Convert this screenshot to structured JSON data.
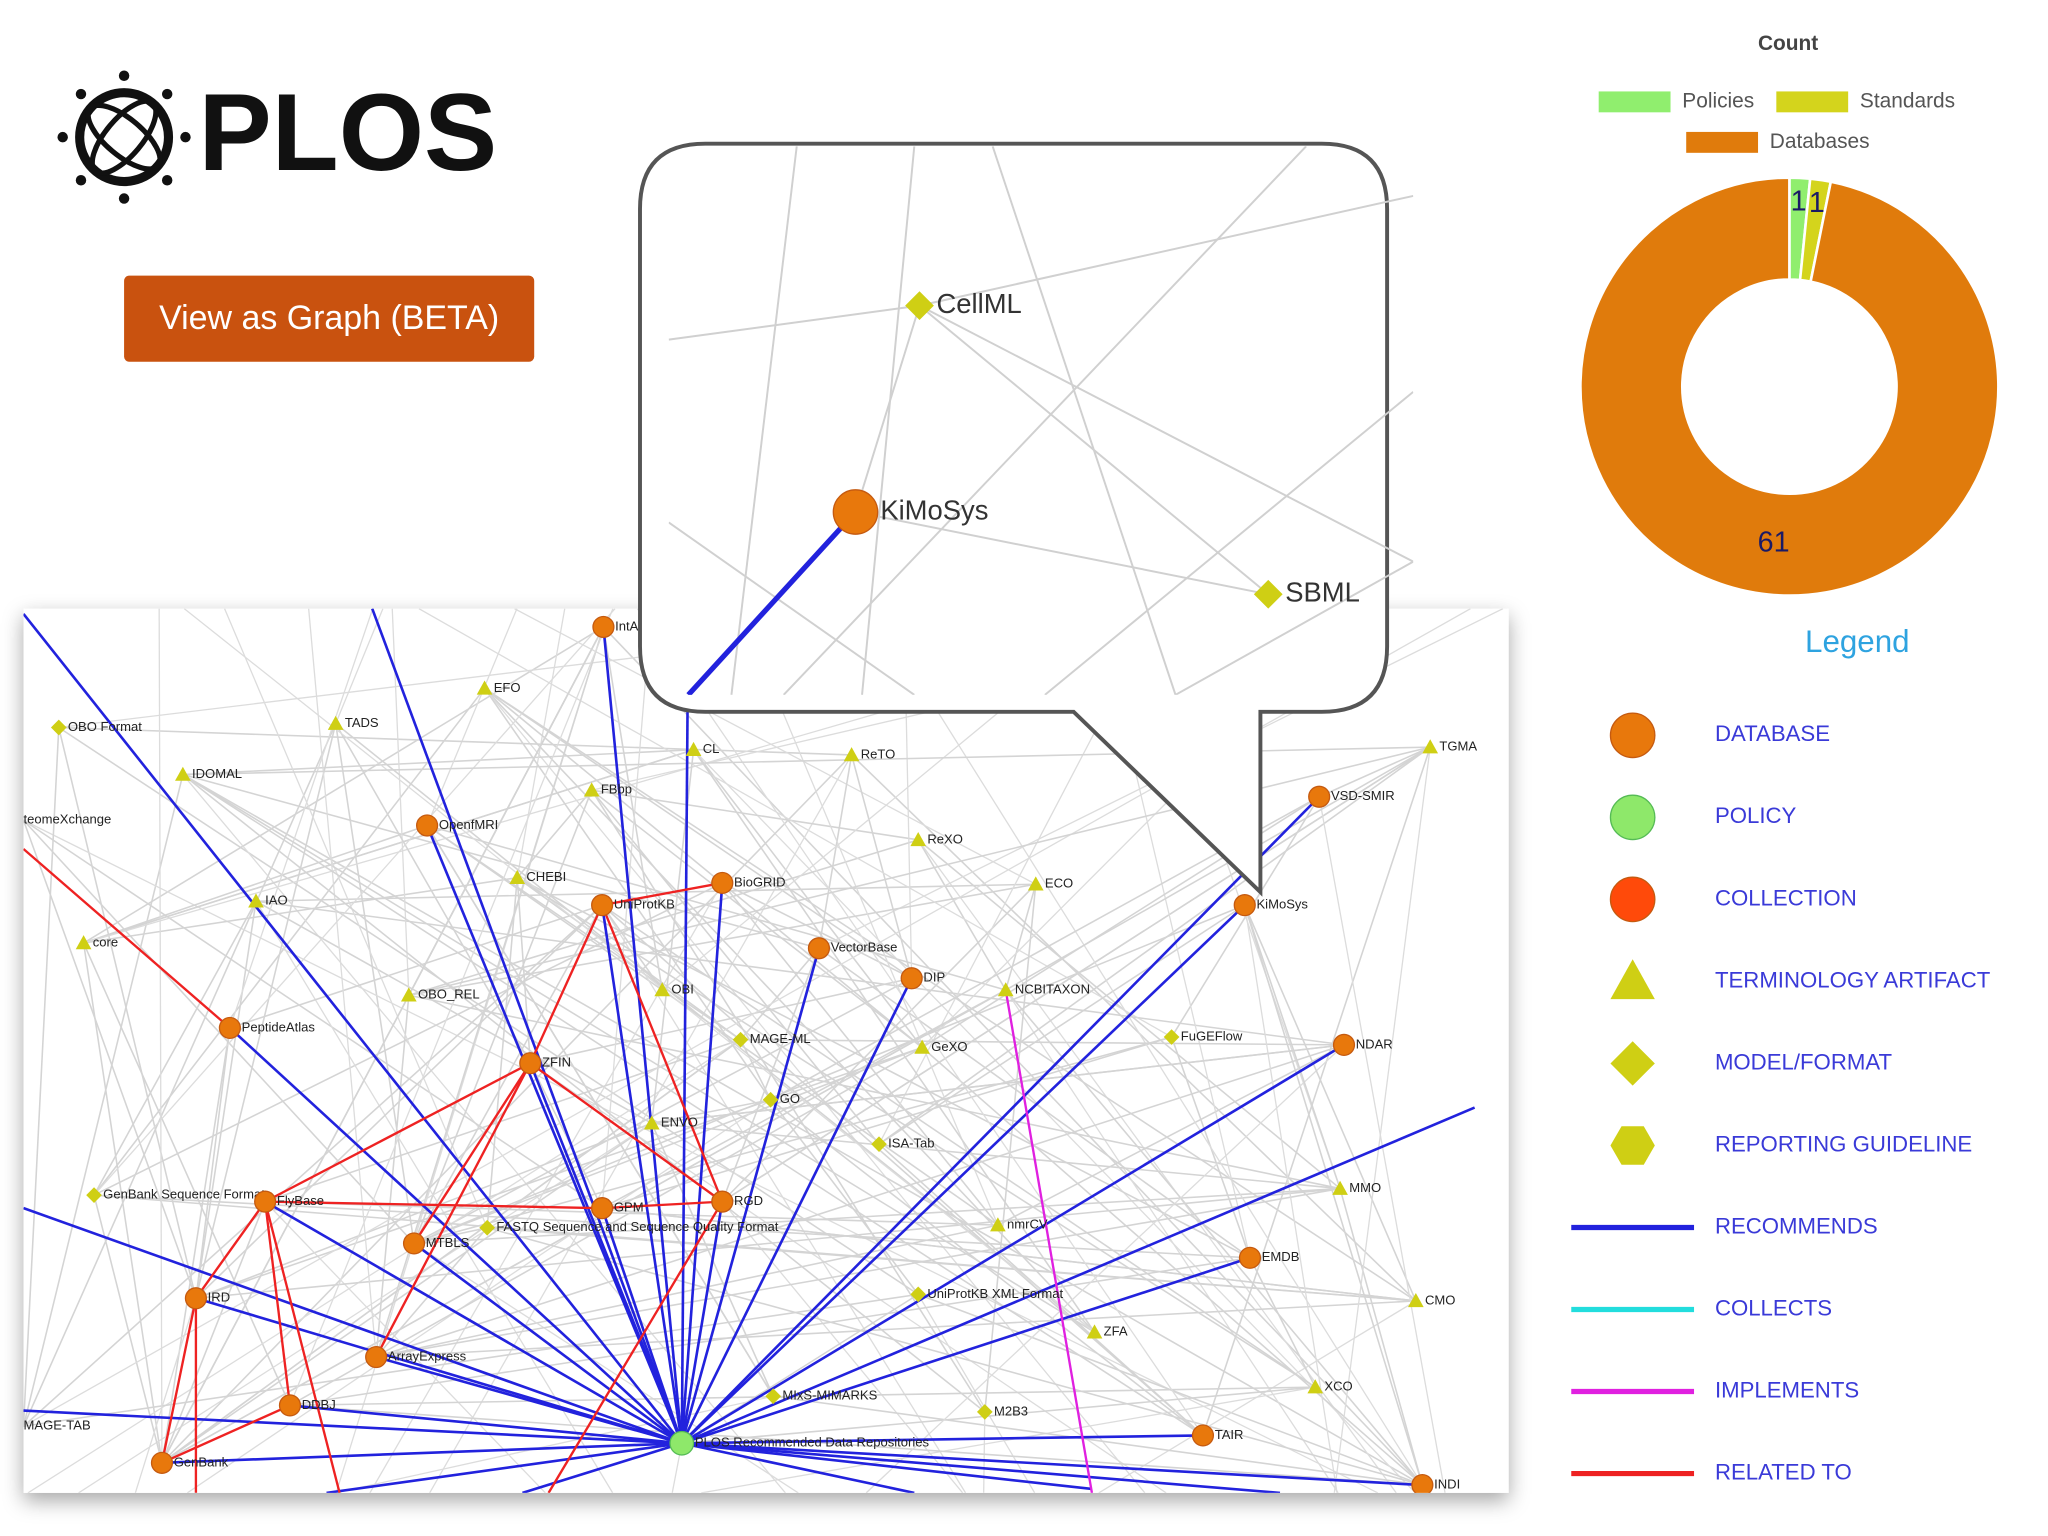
{
  "header": {
    "logo": "PLOS",
    "button": "View as Graph (BETA)"
  },
  "chart_data": {
    "type": "pie",
    "title": "Count",
    "donut": true,
    "categories": [
      "Policies",
      "Standards",
      "Databases"
    ],
    "values": [
      1,
      1,
      61
    ],
    "colors": [
      "#90ee6e",
      "#d4d41c",
      "#e07b0c"
    ]
  },
  "legend": {
    "title": "Legend",
    "items": [
      "DATABASE",
      "POLICY",
      "COLLECTION",
      "TERMINOLOGY ARTIFACT",
      "MODEL/FORMAT",
      "REPORTING GUIDELINE",
      "RECOMMENDS",
      "COLLECTS",
      "IMPLEMENTS",
      "RELATED TO"
    ]
  },
  "graph": {
    "nodes": [
      {
        "label": "IntAct",
        "kind": "database"
      },
      {
        "label": "EFO",
        "kind": "terminology"
      },
      {
        "label": "TADS",
        "kind": "terminology"
      },
      {
        "label": "OBO Format",
        "kind": "model"
      },
      {
        "label": "IDOMAL",
        "kind": "terminology"
      },
      {
        "label": "teomeXchange",
        "kind": "none"
      },
      {
        "label": "OpenfMRI",
        "kind": "database"
      },
      {
        "label": "CL",
        "kind": "terminology"
      },
      {
        "label": "ReTO",
        "kind": "terminology"
      },
      {
        "label": "FBbp",
        "kind": "terminology"
      },
      {
        "label": "ReXO",
        "kind": "terminology"
      },
      {
        "label": "CHEBI",
        "kind": "terminology"
      },
      {
        "label": "BioGRID",
        "kind": "database"
      },
      {
        "label": "UniProtKB",
        "kind": "database"
      },
      {
        "label": "IAO",
        "kind": "terminology"
      },
      {
        "label": "ECO",
        "kind": "terminology"
      },
      {
        "label": "core",
        "kind": "terminology"
      },
      {
        "label": "VectorBase",
        "kind": "database"
      },
      {
        "label": "DIP",
        "kind": "database"
      },
      {
        "label": "NCBITAXON",
        "kind": "terminology"
      },
      {
        "label": "OBO_REL",
        "kind": "terminology"
      },
      {
        "label": "OBI",
        "kind": "terminology"
      },
      {
        "label": "PeptideAtlas",
        "kind": "database"
      },
      {
        "label": "MAGE-ML",
        "kind": "model"
      },
      {
        "label": "GeXO",
        "kind": "terminology"
      },
      {
        "label": "FuGEFlow",
        "kind": "model"
      },
      {
        "label": "ZFIN",
        "kind": "database"
      },
      {
        "label": "GO",
        "kind": "model"
      },
      {
        "label": "ENVO",
        "kind": "terminology"
      },
      {
        "label": "ISA-Tab",
        "kind": "model"
      },
      {
        "label": "GenBank Sequence Format",
        "kind": "model"
      },
      {
        "label": "FlyBase",
        "kind": "database"
      },
      {
        "label": "GPM",
        "kind": "database"
      },
      {
        "label": "RGD",
        "kind": "database"
      },
      {
        "label": "FASTQ Sequence and Sequence Quality Format",
        "kind": "model"
      },
      {
        "label": "nmrCV",
        "kind": "terminology"
      },
      {
        "label": "MTBLS",
        "kind": "database"
      },
      {
        "label": "MMO",
        "kind": "terminology"
      },
      {
        "label": "EMDB",
        "kind": "database"
      },
      {
        "label": "IRD",
        "kind": "database"
      },
      {
        "label": "UniProtKB XML Format",
        "kind": "model"
      },
      {
        "label": "CMO",
        "kind": "terminology"
      },
      {
        "label": "ZFA",
        "kind": "terminology"
      },
      {
        "label": "ArrayExpress",
        "kind": "database"
      },
      {
        "label": "XCO",
        "kind": "terminology"
      },
      {
        "label": "DDBJ",
        "kind": "database"
      },
      {
        "label": "MAGE-TAB",
        "kind": "none"
      },
      {
        "label": "MIxS-MIMARKS",
        "kind": "model"
      },
      {
        "label": "M2B3",
        "kind": "model"
      },
      {
        "label": "TAIR",
        "kind": "database"
      },
      {
        "label": "GenBank",
        "kind": "database"
      },
      {
        "label": "PLOS Recommended Data Repositories",
        "kind": "policy"
      },
      {
        "label": "INDI",
        "kind": "database"
      },
      {
        "label": "NDAR",
        "kind": "database"
      },
      {
        "label": "KiMoSys",
        "kind": "database"
      },
      {
        "label": "VSD-SMIR",
        "kind": "database"
      },
      {
        "label": "TGMA",
        "kind": "terminology"
      }
    ]
  },
  "callout": {
    "nodes": [
      {
        "label": "CellML",
        "kind": "model"
      },
      {
        "label": "KiMoSys",
        "kind": "database"
      },
      {
        "label": "SBML",
        "kind": "model"
      }
    ]
  }
}
